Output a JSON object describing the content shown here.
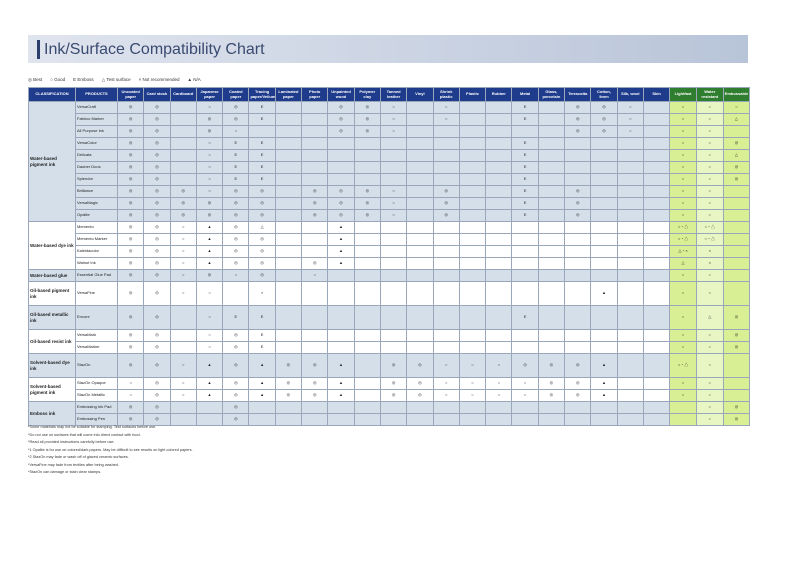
{
  "title": "Ink/Surface Compatibility Chart",
  "legend": [
    "◎ Best",
    "○ Good",
    "E Emboss",
    "△ Test surface",
    "× Not recommended",
    "▲ N/A"
  ],
  "table": {
    "columns": [
      "CLASSIFICATION",
      "PRODUCTS",
      "Uncoated paper",
      "Card stock",
      "Cardboard",
      "Japanese paper",
      "Coated paper",
      "Tracing paper/Vellum",
      "Laminated paper",
      "Photo paper",
      "Unpainted wood",
      "Polymer clay",
      "Tanned leather",
      "Vinyl",
      "Shrink plastic",
      "Plastic",
      "Rubber",
      "Metal",
      "Glass, porcelain",
      "Terracotta",
      "Cotton, linen",
      "Silk, wool",
      "Skin",
      "Lightfast",
      "Water resistant",
      "Embossable"
    ],
    "groups": [
      {
        "classification": "Water-based pigment ink",
        "products": [
          {
            "name": "VersaCraft",
            "cells": [
              "◎",
              "◎",
              null,
              "○",
              "◎",
              "E",
              null,
              null,
              "◎",
              "◎",
              "○",
              null,
              "○",
              null,
              null,
              "E",
              null,
              "◎",
              "◎",
              "○",
              null,
              "○",
              "○",
              "○"
            ]
          },
          {
            "name": "Fabrico Marker",
            "cells": [
              "◎",
              "◎",
              null,
              "◎",
              "◎",
              "E",
              null,
              null,
              "◎",
              "◎",
              "○",
              null,
              "○",
              null,
              null,
              "E",
              null,
              "◎",
              "◎",
              "○",
              null,
              "○",
              "○",
              "△"
            ]
          },
          {
            "name": "All Purpose Ink",
            "cells": [
              "◎",
              "◎",
              null,
              "◎",
              "○",
              null,
              null,
              null,
              "◎",
              "◎",
              "○",
              null,
              null,
              null,
              null,
              null,
              null,
              "◎",
              "◎",
              "○",
              null,
              "○",
              "○",
              null
            ]
          },
          {
            "name": "VersaColor",
            "cells": [
              "◎",
              "◎",
              null,
              "○",
              "E",
              "E",
              null,
              null,
              null,
              null,
              null,
              null,
              null,
              null,
              null,
              "E",
              null,
              null,
              null,
              null,
              null,
              "○",
              "○",
              "◎"
            ]
          },
          {
            "name": "Delicata",
            "cells": [
              "◎",
              "◎",
              null,
              "○",
              "E",
              "E",
              null,
              null,
              null,
              null,
              null,
              null,
              null,
              null,
              null,
              "E",
              null,
              null,
              null,
              null,
              null,
              "○",
              "○",
              "△"
            ]
          },
          {
            "name": "Dauber Duos",
            "cells": [
              "◎",
              "◎",
              null,
              "○",
              "E",
              "E",
              null,
              null,
              null,
              null,
              null,
              null,
              null,
              null,
              null,
              "E",
              null,
              null,
              null,
              null,
              null,
              "○",
              "○",
              "◎"
            ]
          },
          {
            "name": "Splendor",
            "cells": [
              "◎",
              "◎",
              null,
              "○",
              "E",
              "E",
              null,
              null,
              null,
              null,
              null,
              null,
              null,
              null,
              null,
              "E",
              null,
              null,
              null,
              null,
              null,
              "○",
              "○",
              "◎"
            ]
          },
          {
            "name": "Brilliance",
            "cells": [
              "◎",
              "◎",
              "◎",
              "○",
              "◎",
              "◎",
              null,
              "◎",
              "◎",
              "◎",
              "○",
              null,
              "◎",
              null,
              null,
              "E",
              null,
              "◎",
              null,
              null,
              null,
              "○",
              "○",
              null
            ]
          },
          {
            "name": "VersaMagic",
            "cells": [
              "◎",
              "◎",
              "◎",
              "◎",
              "◎",
              "◎",
              null,
              "◎",
              "◎",
              "◎",
              "○",
              null,
              "◎",
              null,
              null,
              "E",
              null,
              "◎",
              null,
              null,
              null,
              "○",
              "○",
              null
            ]
          },
          {
            "name": "Opalite",
            "cells": [
              "◎",
              "◎",
              "◎",
              "◎",
              "◎",
              "◎",
              null,
              "◎",
              "◎",
              "◎",
              "○",
              null,
              "◎",
              null,
              null,
              "E",
              null,
              "◎",
              null,
              null,
              null,
              "○",
              "○",
              null
            ]
          }
        ]
      },
      {
        "classification": "Water-based dye ink",
        "products": [
          {
            "name": "Memento",
            "cells": [
              "◎",
              "◎",
              "○",
              "▲",
              "◎",
              "△",
              null,
              null,
              "▲",
              null,
              null,
              null,
              null,
              null,
              null,
              null,
              null,
              null,
              null,
              null,
              null,
              "○・△",
              "○・△",
              null
            ]
          },
          {
            "name": "Memento Marker",
            "cells": [
              "◎",
              "◎",
              "○",
              "▲",
              "◎",
              "◎",
              null,
              null,
              "▲",
              null,
              null,
              null,
              null,
              null,
              null,
              null,
              null,
              null,
              null,
              null,
              null,
              "○・△",
              "○・△",
              null
            ]
          },
          {
            "name": "Kaleidacolor",
            "cells": [
              "◎",
              "◎",
              "○",
              "▲",
              "◎",
              "◎",
              null,
              null,
              "▲",
              null,
              null,
              null,
              null,
              null,
              null,
              null,
              null,
              null,
              null,
              null,
              null,
              "△・×",
              "×",
              null
            ]
          },
          {
            "name": "Walnut Ink",
            "cells": [
              "◎",
              "◎",
              "○",
              "▲",
              "◎",
              "◎",
              null,
              "◎",
              "▲",
              null,
              null,
              null,
              null,
              null,
              null,
              null,
              null,
              null,
              null,
              null,
              null,
              "△",
              "×",
              null
            ]
          }
        ]
      },
      {
        "classification": "Water-based glue",
        "products": [
          {
            "name": "Essential Glue Pad",
            "cells": [
              "◎",
              "◎",
              "○",
              "◎",
              "○",
              "◎",
              null,
              "○",
              null,
              null,
              null,
              null,
              null,
              null,
              null,
              null,
              null,
              null,
              null,
              null,
              null,
              "○",
              "○",
              null
            ]
          }
        ]
      },
      {
        "classification": "Oil-based pigment ink",
        "products": [
          {
            "name": "VersaFine",
            "cells": [
              "◎",
              "◎",
              "○",
              "○",
              null,
              "×",
              null,
              null,
              null,
              null,
              null,
              null,
              null,
              null,
              null,
              null,
              null,
              null,
              "▲",
              null,
              null,
              "○",
              "○",
              null
            ]
          }
        ]
      },
      {
        "classification": "Oil-based metallic ink",
        "products": [
          {
            "name": "Encore",
            "cells": [
              "◎",
              "◎",
              null,
              "○",
              "E",
              "E",
              null,
              null,
              null,
              null,
              null,
              null,
              null,
              null,
              null,
              "E",
              null,
              null,
              null,
              null,
              null,
              "○",
              "△",
              "◎"
            ]
          }
        ]
      },
      {
        "classification": "Oil-based resist ink",
        "products": [
          {
            "name": "VersaMark",
            "cells": [
              "◎",
              "◎",
              null,
              "○",
              "◎",
              "E",
              null,
              null,
              null,
              null,
              null,
              null,
              null,
              null,
              null,
              null,
              null,
              null,
              null,
              null,
              null,
              "○",
              "○",
              "◎"
            ]
          },
          {
            "name": "VersaMarker",
            "cells": [
              "◎",
              "◎",
              null,
              "○",
              "◎",
              "E",
              null,
              null,
              null,
              null,
              null,
              null,
              null,
              null,
              null,
              null,
              null,
              null,
              null,
              null,
              null,
              "○",
              "○",
              "◎"
            ]
          }
        ]
      },
      {
        "classification": "Solvent-based dye ink",
        "products": [
          {
            "name": "StazOn",
            "cells": [
              "◎",
              "◎",
              "○",
              "▲",
              "◎",
              "▲",
              "◎",
              "◎",
              "▲",
              null,
              "◎",
              "◎",
              "○",
              "○",
              "○",
              "◎",
              "◎",
              "◎",
              "▲",
              null,
              null,
              "○・△",
              "○",
              null
            ]
          }
        ]
      },
      {
        "classification": "Solvent-based pigment ink",
        "products": [
          {
            "name": "StazOn Opaque",
            "cells": [
              "○",
              "◎",
              "○",
              "▲",
              "◎",
              "▲",
              "◎",
              "◎",
              "▲",
              null,
              "◎",
              "◎",
              "○",
              "○",
              "○",
              "○",
              "◎",
              "◎",
              "▲",
              null,
              null,
              "○",
              "○",
              null
            ]
          },
          {
            "name": "StazOn Metallic",
            "cells": [
              "○",
              "◎",
              "○",
              "▲",
              "◎",
              "▲",
              "◎",
              "◎",
              "▲",
              null,
              "◎",
              "◎",
              "○",
              "○",
              "○",
              "○",
              "◎",
              "◎",
              "▲",
              null,
              null,
              "○",
              "○",
              null
            ]
          }
        ]
      },
      {
        "classification": "Emboss ink",
        "products": [
          {
            "name": "Embossing Ink Pad",
            "cells": [
              "◎",
              "◎",
              null,
              null,
              "◎",
              null,
              null,
              null,
              null,
              null,
              null,
              null,
              null,
              null,
              null,
              null,
              null,
              null,
              null,
              null,
              null,
              null,
              "○",
              "◎"
            ]
          },
          {
            "name": "Embossing Pen",
            "cells": [
              "◎",
              "◎",
              null,
              null,
              "◎",
              null,
              null,
              null,
              null,
              null,
              null,
              null,
              null,
              null,
              null,
              null,
              null,
              null,
              null,
              null,
              null,
              null,
              "○",
              "◎"
            ]
          }
        ]
      }
    ]
  },
  "footnotes": [
    "*Some materials may not be suitable for stamping. Test surfaces before use.",
    "*Do not use on surfaces that will come into direct contact with food.",
    "*Read all provided instructions carefully before use.",
    "*1 Opalite is for use on colored/dark papers. May be difficult to see results on light colored papers.",
    "*2 StazOn may fade or wash off of glazed ceramic surfaces.",
    "*VersaFine may fade from textiles after being washed.",
    "*StazOn can damage or stain clear stamps."
  ]
}
